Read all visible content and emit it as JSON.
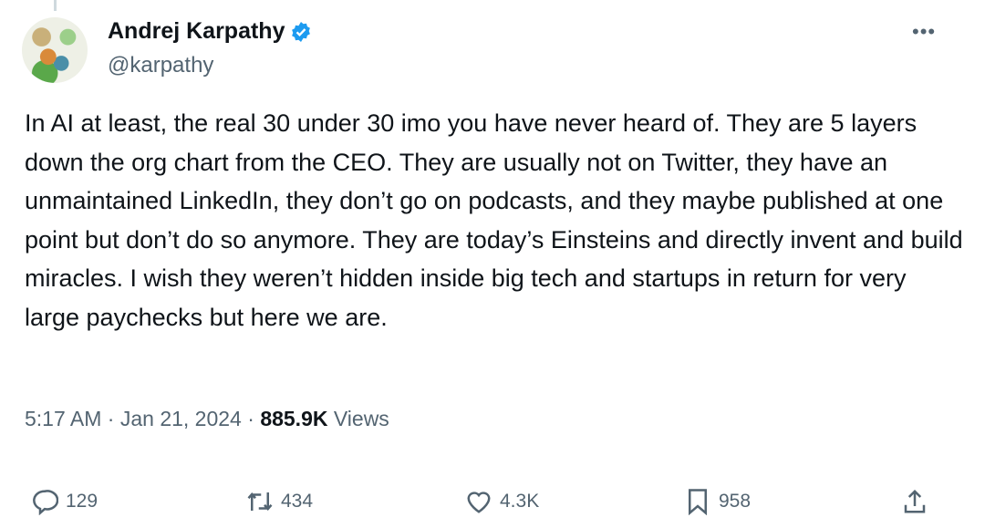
{
  "author": {
    "name": "Andrej Karpathy",
    "handle": "@karpathy",
    "verified": true,
    "verified_color": "#1d9bf0"
  },
  "tweet": {
    "text": "In AI at least, the real 30 under 30 imo you have never heard of. They are 5 layers down the org chart from the CEO. They are usually not on Twitter, they have an unmaintained LinkedIn, they don’t go on podcasts, and they maybe published at one point but don’t do so anymore. They are today’s Einsteins and directly invent and build miracles. I wish they weren’t hidden inside big tech and startups in return for very large paychecks but here we are.",
    "time": "5:17 AM",
    "date": "Jan 21, 2024",
    "views_count": "885.9K",
    "views_label": "Views",
    "separator": "·"
  },
  "actions": {
    "replies": "129",
    "reposts": "434",
    "likes": "4.3K",
    "bookmarks": "958"
  },
  "more_label": "•••"
}
